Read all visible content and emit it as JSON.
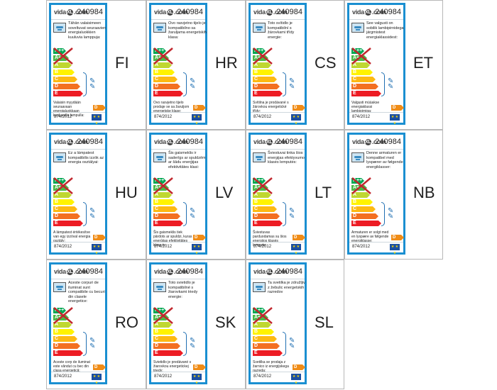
{
  "product_code": "240984",
  "brand": {
    "pre": "vida",
    "ring": "XL",
    "post": ".com"
  },
  "regulation": "874/2012",
  "eu_flag_text": "★ ★ ★",
  "bulb_glyphs": "✎\n✎",
  "colors": {
    "label_border": "#1a8fd1",
    "cross": "#c1272d"
  },
  "classes": [
    {
      "letter": "A++",
      "color": "#00a651"
    },
    {
      "letter": "A+",
      "color": "#4cb848"
    },
    {
      "letter": "A",
      "color": "#bfd730"
    },
    {
      "letter": "B",
      "color": "#fff200"
    },
    {
      "letter": "C",
      "color": "#fdb913"
    },
    {
      "letter": "D",
      "color": "#f37021"
    },
    {
      "letter": "E",
      "color": "#ed1c24"
    }
  ],
  "bulb_class": "D",
  "languages": [
    {
      "code": "FI",
      "desc": "Tähän valaisimeen soveltuvat seuraavien energialuokkien kuuluvia lamppuja:",
      "foot": "Valaisin myydään seuraavaan energialuokkaan kuuluvalla lampulla:"
    },
    {
      "code": "HR",
      "desc": "Ovo rasvjetno tijelo je kompatibilno sa žaruljama energetskih klasa:",
      "foot": "Ovo rasvjetno tijelo prodaje se sa žaruljom energetske klase:"
    },
    {
      "code": "CS",
      "desc": "Toto svítidlo je kompatibilní s žárovkami třídy energie:",
      "foot": "Svítilna je prodávané s žárovkou energetické třídy:"
    },
    {
      "code": "ET",
      "desc": "See valgusti on sobilik lambipirnidega järgmistest energiaklassidest:",
      "foot": "Valgusti müüakse energiaklassi lambipirniga:"
    },
    {
      "code": "HU",
      "desc": "Ez a lámpatest kompatibilis izzók az energia osztályai:",
      "foot": "A lámpatest értékesítve van egy izzóval energia osztály:"
    },
    {
      "code": "LV",
      "desc": "Šis gaismeklis ir saderīgs ar spuldzēm ar šādu enerģijas efektivitātes klasi:",
      "foot": "Šis gaismeklis tiek pārdots ar spuldzi, kuras enerģijas efektivitātes klase ir:"
    },
    {
      "code": "LT",
      "desc": "Šviestuvai tinka šios energijas efektyvumo klasės lemputės:",
      "foot": "Šviestuvas parduodamas su šios energijos klasės lempute:"
    },
    {
      "code": "NB",
      "desc": "Denne armaturen er kompatibel med lyspærer av følgende energiklasser:",
      "foot": "Armaturen er solgt med en lyspære av følgende energiklasse:"
    },
    {
      "code": "RO",
      "desc": "Aceste corpuri de iluminat sunt compatibile cu becuri din clasele energetice:",
      "foot": "Aceste corp de iluminat este vândut cu bec din clasa energetică:"
    },
    {
      "code": "SK",
      "desc": "Toto svietidlo je kompatibilné s žiarovkami triedy energie:",
      "foot": "Svietidlo je predávané s žiarovkou energetickej triedy:"
    },
    {
      "code": "SL",
      "desc": "Ta svetilka je združljiv z žebulic energetskih razredov",
      "foot": "Svetilka se prodaja z žarnico iz energijskega razreda:"
    }
  ]
}
